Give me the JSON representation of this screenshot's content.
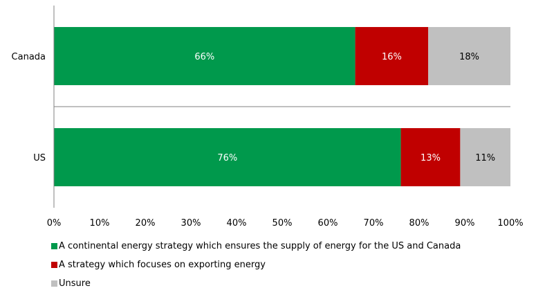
{
  "chart_data": {
    "type": "bar",
    "orientation": "horizontal",
    "stacked": true,
    "categories": [
      "Canada",
      "US"
    ],
    "series": [
      {
        "name": "A continental energy strategy which ensures the supply of energy for the US and Canada",
        "values": [
          66,
          76
        ],
        "labels": [
          "66%",
          "76%"
        ],
        "color": "#00994c",
        "label_color": "#ffffff"
      },
      {
        "name": "A strategy which focuses on exporting energy",
        "values": [
          16,
          13
        ],
        "labels": [
          "16%",
          "13%"
        ],
        "color": "#c00000",
        "label_color": "#ffffff"
      },
      {
        "name": "Unsure",
        "values": [
          18,
          11
        ],
        "labels": [
          "18%",
          "11%"
        ],
        "color": "#c0c0c0",
        "label_color": "#000000"
      }
    ],
    "xlim": [
      0,
      100
    ],
    "x_ticks": [
      "0%",
      "10%",
      "20%",
      "30%",
      "40%",
      "50%",
      "60%",
      "70%",
      "80%",
      "90%",
      "100%"
    ],
    "grid": false,
    "legend_position": "bottom-left",
    "title": "",
    "xlabel": "",
    "ylabel": ""
  }
}
